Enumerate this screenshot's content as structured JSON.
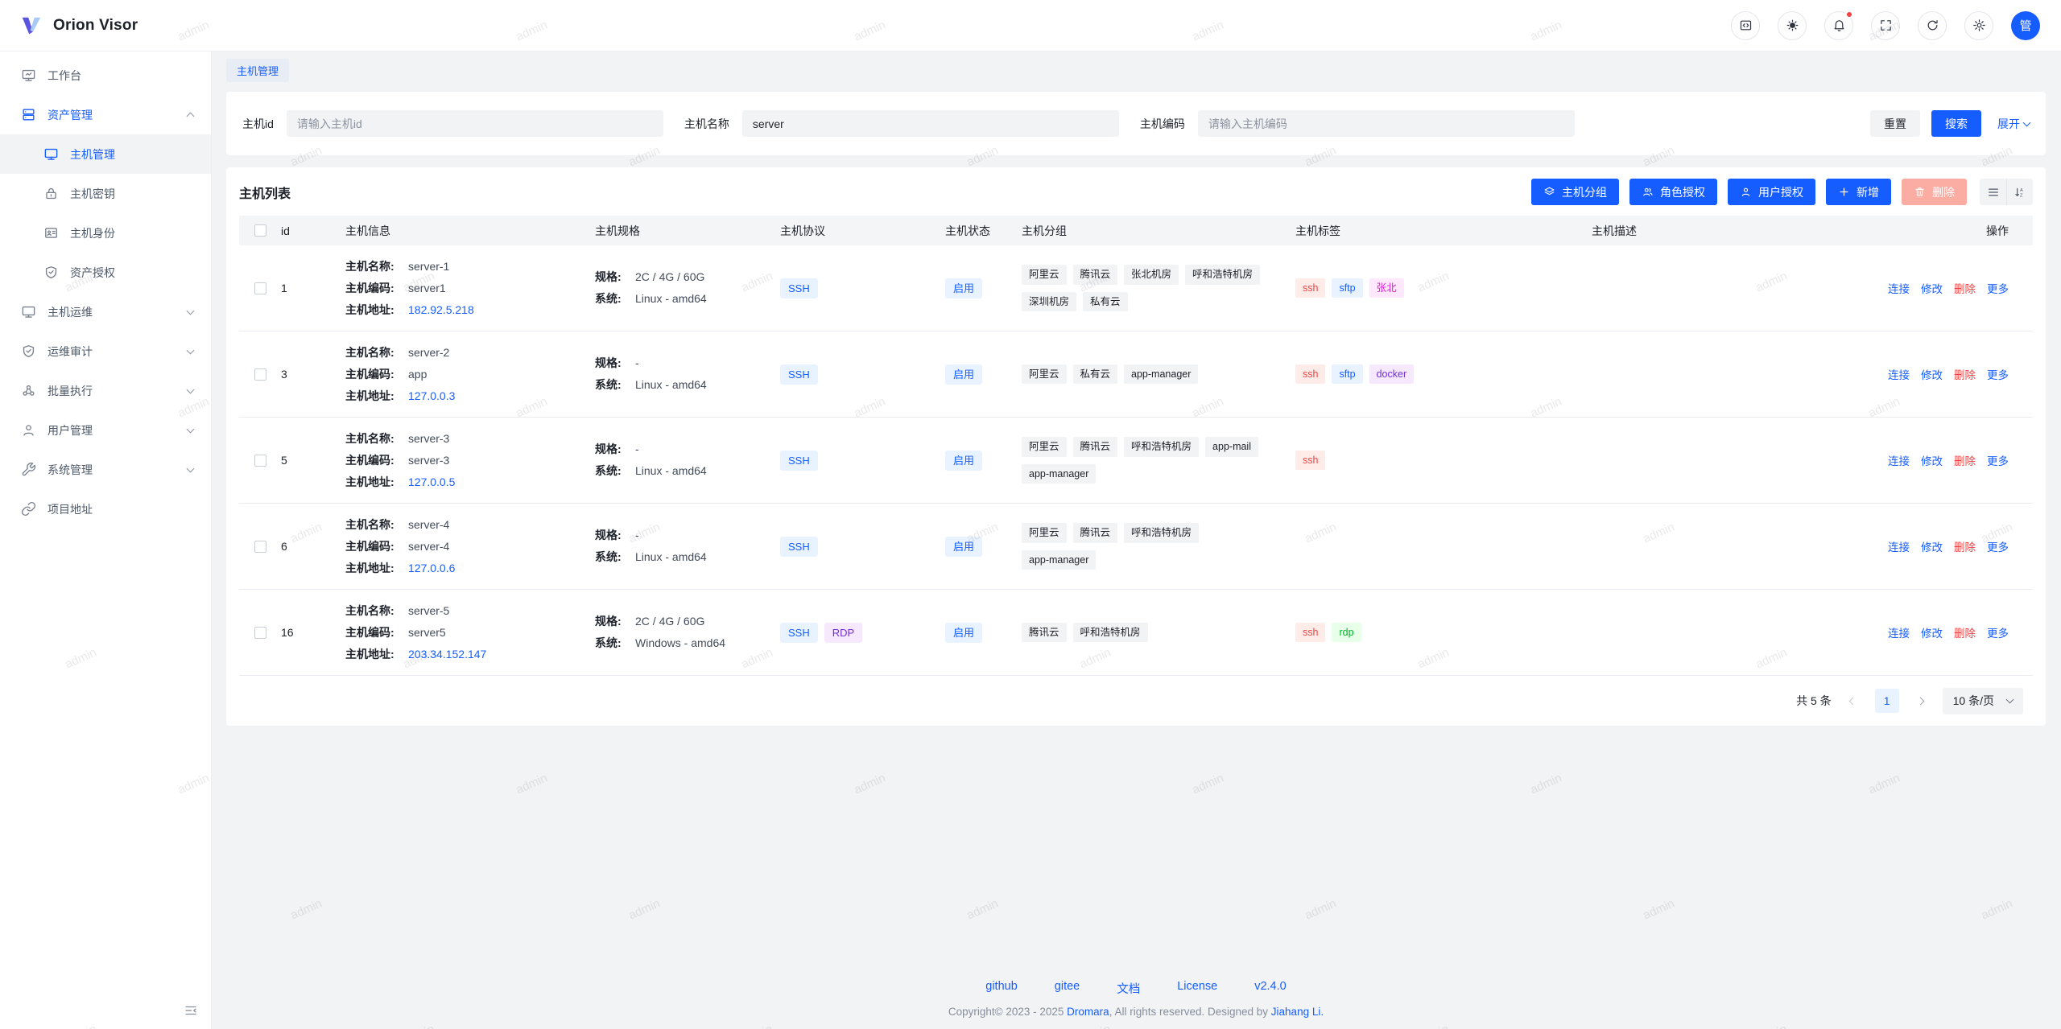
{
  "watermark": {
    "text": "admin"
  },
  "colors": {
    "primary": "#165dff",
    "danger": "#f53f3f",
    "danger_disabled": "#fbaca3",
    "content_bg": "#f2f3f5",
    "notification_dot": "#f53f3f",
    "tag_red_bg": "#ffece8",
    "tag_red_text": "#f53f3f",
    "tag_blue_bg": "#e8f3ff",
    "tag_blue_text": "#165dff",
    "tag_purple_bg": "#f5e8ff",
    "tag_purple_text": "#722ed1",
    "tag_magenta_bg": "#ffe8fb",
    "tag_magenta_text": "#d91ad9",
    "tag_green_bg": "#e8ffea",
    "tag_green_text": "#00b42a",
    "group_tag_bg": "#f2f3f5"
  },
  "header": {
    "logo_text": "Orion Visor",
    "avatar_text": "管"
  },
  "sidebar": {
    "items": [
      {
        "label": "工作台"
      },
      {
        "label": "资产管理"
      },
      {
        "label": "主机管理"
      },
      {
        "label": "主机密钥"
      },
      {
        "label": "主机身份"
      },
      {
        "label": "资产授权"
      },
      {
        "label": "主机运维"
      },
      {
        "label": "运维审计"
      },
      {
        "label": "批量执行"
      },
      {
        "label": "用户管理"
      },
      {
        "label": "系统管理"
      },
      {
        "label": "项目地址"
      }
    ]
  },
  "tabs": {
    "active": "主机管理"
  },
  "search": {
    "fields": [
      {
        "label": "主机id",
        "placeholder": "请输入主机id",
        "value": ""
      },
      {
        "label": "主机名称",
        "placeholder": "",
        "value": "server"
      },
      {
        "label": "主机编码",
        "placeholder": "请输入主机编码",
        "value": ""
      }
    ],
    "reset_label": "重置",
    "search_label": "搜索",
    "expand_label": "展开"
  },
  "table": {
    "title": "主机列表",
    "toolbar": {
      "group_label": "主机分组",
      "role_auth_label": "角色授权",
      "user_auth_label": "用户授权",
      "add_label": "新增",
      "delete_label": "删除"
    },
    "columns": {
      "id": "id",
      "info": "主机信息",
      "spec": "主机规格",
      "protocol": "主机协议",
      "status": "主机状态",
      "group": "主机分组",
      "tag": "主机标签",
      "desc": "主机描述",
      "action": "操作"
    },
    "row_labels": {
      "name": "主机名称:",
      "code": "主机编码:",
      "address": "主机地址:",
      "spec": "规格:",
      "os": "系统:"
    },
    "actions": {
      "connect": "连接",
      "edit": "修改",
      "delete": "删除",
      "more": "更多"
    },
    "rows": [
      {
        "id": "1",
        "name": "server-1",
        "code": "server1",
        "address": "182.92.5.218",
        "spec": "2C / 4G / 60G",
        "os": "Linux - amd64",
        "protocols": [
          "SSH"
        ],
        "status": "启用",
        "groups": [
          "阿里云",
          "腾讯云",
          "张北机房",
          "呼和浩特机房",
          "深圳机房",
          "私有云"
        ],
        "tags": [
          "ssh",
          "sftp",
          "张北"
        ],
        "description": ""
      },
      {
        "id": "3",
        "name": "server-2",
        "code": "app",
        "address": "127.0.0.3",
        "spec": "-",
        "os": "Linux - amd64",
        "protocols": [
          "SSH"
        ],
        "status": "启用",
        "groups": [
          "阿里云",
          "私有云",
          "app-manager"
        ],
        "tags": [
          "ssh",
          "sftp",
          "docker"
        ],
        "description": ""
      },
      {
        "id": "5",
        "name": "server-3",
        "code": "server-3",
        "address": "127.0.0.5",
        "spec": "-",
        "os": "Linux - amd64",
        "protocols": [
          "SSH"
        ],
        "status": "启用",
        "groups": [
          "阿里云",
          "腾讯云",
          "呼和浩特机房",
          "app-mail",
          "app-manager"
        ],
        "tags": [
          "ssh"
        ],
        "description": ""
      },
      {
        "id": "6",
        "name": "server-4",
        "code": "server-4",
        "address": "127.0.0.6",
        "spec": "-",
        "os": "Linux - amd64",
        "protocols": [
          "SSH"
        ],
        "status": "启用",
        "groups": [
          "阿里云",
          "腾讯云",
          "呼和浩特机房",
          "app-manager"
        ],
        "tags": [],
        "description": ""
      },
      {
        "id": "16",
        "name": "server-5",
        "code": "server5",
        "address": "203.34.152.147",
        "spec": "2C / 4G / 60G",
        "os": "Windows - amd64",
        "protocols": [
          "SSH",
          "RDP"
        ],
        "status": "启用",
        "groups": [
          "腾讯云",
          "呼和浩特机房"
        ],
        "tags": [
          "ssh",
          "rdp"
        ],
        "description": ""
      }
    ]
  },
  "pagination": {
    "total_label": "共 5 条",
    "current_page": "1",
    "page_size_label": "10 条/页"
  },
  "footer": {
    "links": [
      "github",
      "gitee",
      "文档",
      "License",
      "v2.4.0"
    ],
    "copyright_prefix": "Copyright© 2023 - 2025 ",
    "brand": "Dromara",
    "copyright_mid": ", All rights reserved. Designed by ",
    "author": "Jiahang Li."
  }
}
